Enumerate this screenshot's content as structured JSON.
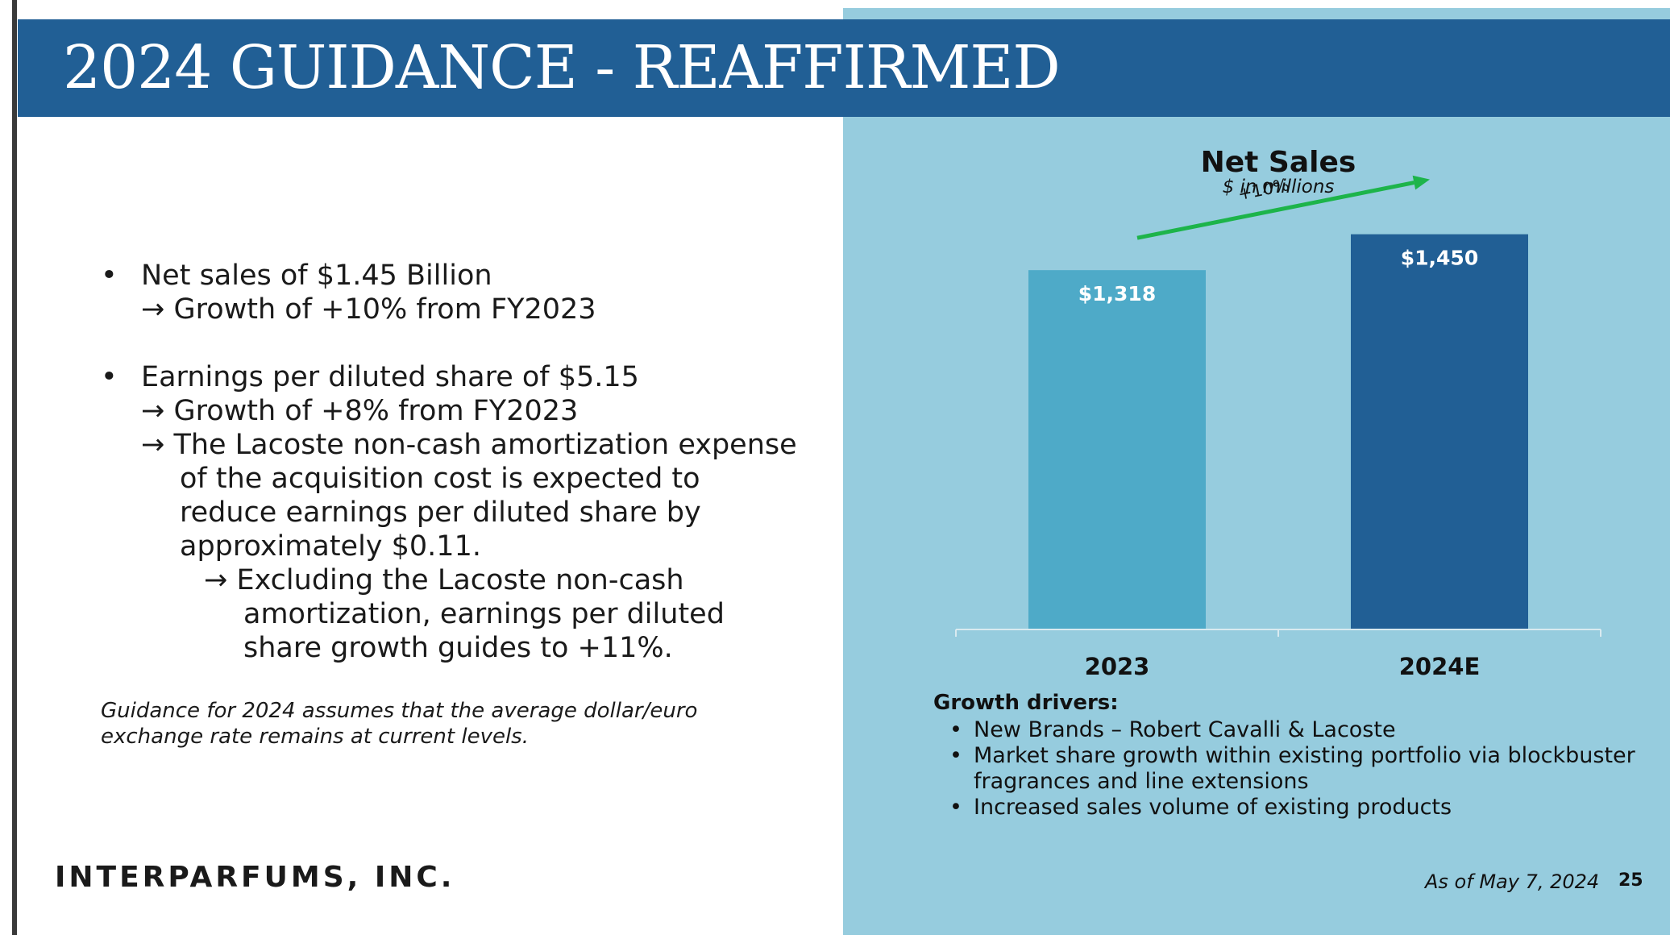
{
  "title": "2024 GUIDANCE - REAFFIRMED",
  "left": {
    "bullet1": {
      "main": "Net sales of $1.45 Billion",
      "sub1": "→ Growth of +10% from FY2023"
    },
    "bullet2": {
      "main": "Earnings per diluted share of $5.15",
      "sub1": "→ Growth of +8% from FY2023",
      "sub2": [
        "→ The Lacoste non-cash amortization expense",
        "of the acquisition cost is expected to",
        "reduce earnings per diluted share by",
        "approximately $0.11."
      ],
      "sub3": [
        "→ Excluding the Lacoste non-cash",
        "amortization, earnings per diluted",
        "share growth guides to +11%."
      ]
    },
    "footnote": [
      "Guidance for 2024 assumes that the average dollar/euro",
      "exchange rate remains at current levels."
    ],
    "company": "INTERPARFUMS, INC."
  },
  "chart_data": {
    "type": "bar",
    "title": "Net Sales",
    "subtitle": "$ in millions",
    "categories": [
      "2023",
      "2024E"
    ],
    "values": [
      1318,
      1450
    ],
    "value_labels": [
      "$1,318",
      "$1,450"
    ],
    "bar_colors": [
      "#4eaac8",
      "#215f95"
    ],
    "annotation": "+10%",
    "annotation_color": "#1db44a",
    "ylim": [
      0,
      1600
    ],
    "grid": false
  },
  "growth_drivers": {
    "title": "Growth drivers:",
    "items": [
      "New Brands – Robert Cavalli & Lacoste",
      "Market share growth within existing portfolio via blockbuster fragrances and line extensions",
      "Increased sales volume of existing products"
    ]
  },
  "footer": {
    "as_of": "As of May 7, 2024",
    "page": "25"
  },
  "colors": {
    "title_bar": "#215f95",
    "panel": "#96ccde"
  }
}
